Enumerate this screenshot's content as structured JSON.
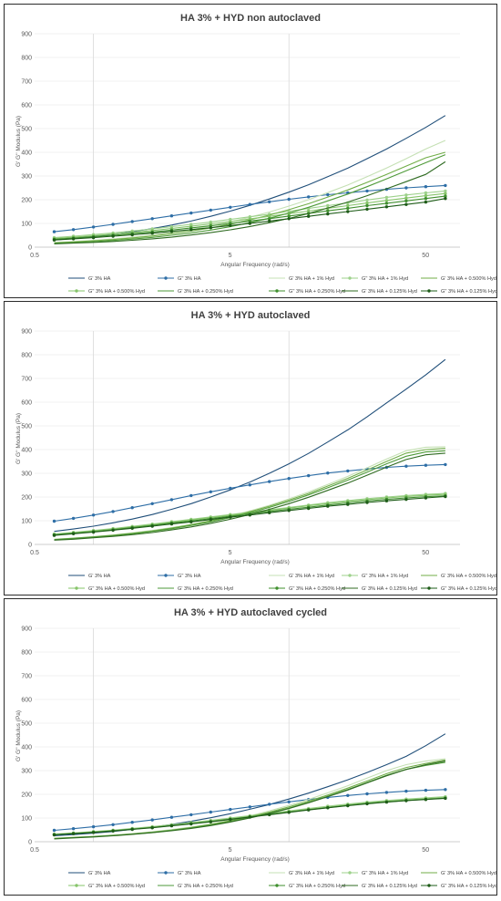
{
  "colors": {
    "g1": "#1f4e79",
    "g2": "#2e6ea6",
    "h1": "#c5e0b4",
    "h2": "#9dd18b",
    "p1": "#70ad47",
    "p2": "#86c46a",
    "q1": "#4e9a38",
    "q2": "#3f8f2e",
    "r1": "#2f6b21",
    "r2": "#1e5c18"
  },
  "chart_data": [
    {
      "type": "line",
      "title": "HA 3% + HYD non autoclaved",
      "xlabel": "Angular Frequency (rad/s)",
      "ylabel": "G' G'' Modulus (Pa)",
      "xscale": "log",
      "xlim": [
        0.5,
        75
      ],
      "ylim": [
        0,
        900
      ],
      "xticks": [
        "0.5",
        "5",
        "50"
      ],
      "yticks": [
        "0",
        "100",
        "200",
        "300",
        "400",
        "500",
        "600",
        "700",
        "800",
        "900"
      ],
      "x": [
        0.63,
        0.79,
        1.0,
        1.26,
        1.58,
        2.0,
        2.51,
        3.16,
        3.98,
        5.01,
        6.31,
        7.94,
        10.0,
        12.6,
        15.8,
        20.0,
        25.1,
        31.6,
        39.8,
        50.1,
        63.1
      ],
      "legend": "bottom",
      "series": [
        {
          "name": "G' 3% HA",
          "values": [
            30,
            37,
            45,
            54,
            65,
            78,
            93,
            110,
            130,
            152,
            176,
            203,
            232,
            263,
            297,
            333,
            373,
            414,
            459,
            505,
            555
          ],
          "markers": false,
          "color": "g1"
        },
        {
          "name": "G'' 3% HA",
          "values": [
            65,
            74,
            85,
            96,
            108,
            120,
            132,
            144,
            156,
            168,
            180,
            191,
            202,
            212,
            221,
            229,
            237,
            244,
            250,
            255,
            260
          ],
          "markers": true,
          "color": "g2"
        },
        {
          "name": "G' 3% HA + 1% Hyd",
          "values": [
            20,
            24,
            29,
            35,
            42,
            51,
            62,
            74,
            89,
            106,
            126,
            148,
            173,
            200,
            230,
            262,
            297,
            334,
            373,
            414,
            450
          ],
          "markers": false,
          "color": "h1"
        },
        {
          "name": "G'' 3% HA + 1% Hyd",
          "values": [
            40,
            46,
            53,
            60,
            68,
            77,
            86,
            96,
            106,
            117,
            128,
            139,
            151,
            163,
            175,
            187,
            199,
            210,
            220,
            229,
            237
          ],
          "markers": true,
          "color": "h2"
        },
        {
          "name": "G' 3% HA + 0.500% Hyd",
          "values": [
            18,
            22,
            27,
            32,
            39,
            47,
            57,
            68,
            81,
            97,
            115,
            135,
            158,
            183,
            211,
            241,
            273,
            307,
            342,
            377,
            400
          ],
          "markers": false,
          "color": "p1"
        },
        {
          "name": "G'' 3% HA + 0.500% Hyd",
          "values": [
            36,
            42,
            48,
            55,
            62,
            70,
            79,
            88,
            98,
            108,
            119,
            130,
            141,
            152,
            164,
            175,
            186,
            197,
            207,
            217,
            226
          ],
          "markers": true,
          "color": "p2"
        },
        {
          "name": "G' 3% HA + 0.250% Hyd",
          "values": [
            16,
            19,
            23,
            28,
            34,
            41,
            50,
            60,
            72,
            86,
            103,
            122,
            144,
            168,
            195,
            224,
            255,
            288,
            322,
            356,
            390
          ],
          "markers": false,
          "color": "q1"
        },
        {
          "name": "G'' 3% HA + 0.250% Hyd",
          "values": [
            33,
            38,
            44,
            50,
            57,
            64,
            72,
            81,
            90,
            100,
            110,
            120,
            131,
            142,
            153,
            164,
            175,
            185,
            195,
            205,
            215
          ],
          "markers": true,
          "color": "q2"
        },
        {
          "name": "G' 3% HA + 0.125% Hyd",
          "values": [
            14,
            17,
            20,
            24,
            29,
            35,
            42,
            51,
            61,
            73,
            87,
            103,
            121,
            142,
            165,
            190,
            217,
            246,
            276,
            307,
            360
          ],
          "markers": false,
          "color": "r1"
        },
        {
          "name": "G'' 3% HA + 0.125% Hyd",
          "values": [
            30,
            35,
            40,
            46,
            52,
            59,
            66,
            74,
            82,
            91,
            100,
            110,
            120,
            130,
            140,
            150,
            160,
            170,
            180,
            190,
            205
          ],
          "markers": true,
          "color": "r2"
        }
      ]
    },
    {
      "type": "line",
      "title": "HA 3% + HYD  autoclaved",
      "xlabel": "Angular Frequency (rad/s)",
      "ylabel": "G' G'' Modulus (Pa)",
      "xscale": "log",
      "xlim": [
        0.5,
        75
      ],
      "ylim": [
        0,
        900
      ],
      "xticks": [
        "0.5",
        "5",
        "50"
      ],
      "yticks": [
        "0",
        "100",
        "200",
        "300",
        "400",
        "500",
        "600",
        "700",
        "800",
        "900"
      ],
      "x": [
        0.63,
        0.79,
        1.0,
        1.26,
        1.58,
        2.0,
        2.51,
        3.16,
        3.98,
        5.01,
        6.31,
        7.94,
        10.0,
        12.6,
        15.8,
        20.0,
        25.1,
        31.6,
        39.8,
        50.1,
        63.1
      ],
      "legend": "bottom",
      "series": [
        {
          "name": "G' 3% HA",
          "values": [
            55,
            65,
            77,
            91,
            107,
            126,
            148,
            172,
            200,
            230,
            263,
            300,
            340,
            384,
            432,
            483,
            538,
            597,
            655,
            715,
            780
          ],
          "markers": false,
          "color": "g1"
        },
        {
          "name": "G'' 3% HA",
          "values": [
            98,
            110,
            124,
            139,
            155,
            172,
            189,
            206,
            222,
            237,
            251,
            265,
            278,
            290,
            301,
            310,
            318,
            325,
            330,
            334,
            337
          ],
          "markers": true,
          "color": "g2"
        },
        {
          "name": "G' 3% HA + 1% Hyd",
          "values": [
            22,
            27,
            33,
            40,
            49,
            59,
            71,
            85,
            101,
            120,
            141,
            165,
            192,
            221,
            253,
            287,
            323,
            360,
            395,
            410,
            412
          ],
          "markers": false,
          "color": "h1"
        },
        {
          "name": "G'' 3% HA + 1% Hyd",
          "values": [
            44,
            51,
            59,
            67,
            76,
            86,
            96,
            106,
            116,
            126,
            136,
            146,
            156,
            166,
            176,
            185,
            193,
            200,
            206,
            211,
            215
          ],
          "markers": true,
          "color": "h2"
        },
        {
          "name": "G' 3% HA + 0.500% Hyd",
          "values": [
            21,
            26,
            32,
            39,
            47,
            57,
            69,
            83,
            99,
            117,
            138,
            161,
            187,
            215,
            246,
            279,
            314,
            350,
            385,
            400,
            405
          ],
          "markers": false,
          "color": "p1"
        },
        {
          "name": "G'' 3% HA + 0.500% Hyd",
          "values": [
            42,
            49,
            57,
            65,
            74,
            83,
            93,
            103,
            113,
            123,
            133,
            143,
            153,
            163,
            172,
            181,
            189,
            196,
            202,
            207,
            211
          ],
          "markers": true,
          "color": "p2"
        },
        {
          "name": "G' 3% HA + 0.250% Hyd",
          "values": [
            20,
            25,
            31,
            37,
            45,
            55,
            66,
            80,
            95,
            113,
            133,
            156,
            181,
            209,
            239,
            271,
            305,
            340,
            372,
            390,
            395
          ],
          "markers": false,
          "color": "q1"
        },
        {
          "name": "G'' 3% HA + 0.250% Hyd",
          "values": [
            40,
            47,
            54,
            62,
            71,
            80,
            90,
            99,
            109,
            119,
            129,
            139,
            148,
            157,
            166,
            175,
            183,
            190,
            196,
            201,
            205
          ],
          "markers": true,
          "color": "q2"
        },
        {
          "name": "G' 3% HA + 0.125% Hyd",
          "values": [
            18,
            22,
            28,
            34,
            41,
            50,
            61,
            74,
            89,
            106,
            126,
            148,
            172,
            199,
            228,
            259,
            292,
            326,
            358,
            378,
            385
          ],
          "markers": false,
          "color": "r1"
        },
        {
          "name": "G'' 3% HA + 0.125% Hyd",
          "values": [
            38,
            45,
            52,
            60,
            68,
            77,
            86,
            95,
            105,
            115,
            124,
            134,
            143,
            152,
            161,
            169,
            177,
            184,
            190,
            196,
            202
          ],
          "markers": true,
          "color": "r2"
        }
      ]
    },
    {
      "type": "line",
      "title": "HA 3% + HYD autoclaved cycled",
      "xlabel": "Angular Frequency (rad/s)",
      "ylabel": "G' G'' Modulus (Pa)",
      "xscale": "log",
      "xlim": [
        0.5,
        75
      ],
      "ylim": [
        0,
        900
      ],
      "xticks": [
        "0.5",
        "5",
        "50"
      ],
      "yticks": [
        "0",
        "100",
        "200",
        "300",
        "400",
        "500",
        "600",
        "700",
        "800",
        "900"
      ],
      "x": [
        0.63,
        0.79,
        1.0,
        1.26,
        1.58,
        2.0,
        2.51,
        3.16,
        3.98,
        5.01,
        6.31,
        7.94,
        10.0,
        12.6,
        15.8,
        20.0,
        25.1,
        31.6,
        39.8,
        50.1,
        63.1
      ],
      "legend": "bottom",
      "series": [
        {
          "name": "G' 3% HA",
          "values": [
            25,
            30,
            36,
            43,
            52,
            62,
            73,
            86,
            101,
            118,
            137,
            157,
            180,
            205,
            232,
            261,
            292,
            325,
            360,
            405,
            455
          ],
          "markers": false,
          "color": "g1"
        },
        {
          "name": "G'' 3% HA",
          "values": [
            48,
            55,
            63,
            72,
            82,
            92,
            103,
            114,
            125,
            136,
            147,
            158,
            168,
            178,
            187,
            195,
            202,
            208,
            213,
            217,
            220
          ],
          "markers": true,
          "color": "g2"
        },
        {
          "name": "G' 3% HA + 1% Hyd",
          "values": [
            15,
            19,
            23,
            28,
            34,
            42,
            51,
            62,
            75,
            91,
            109,
            130,
            153,
            178,
            206,
            236,
            268,
            300,
            325,
            340,
            350
          ],
          "markers": false,
          "color": "h1"
        },
        {
          "name": "G'' 3% HA + 1% Hyd",
          "values": [
            32,
            37,
            43,
            49,
            56,
            64,
            72,
            81,
            90,
            100,
            110,
            120,
            130,
            140,
            150,
            159,
            167,
            174,
            180,
            185,
            190
          ],
          "markers": true,
          "color": "h2"
        },
        {
          "name": "G' 3% HA + 0.500% Hyd",
          "values": [
            14,
            18,
            22,
            27,
            33,
            40,
            49,
            60,
            73,
            88,
            105,
            125,
            147,
            171,
            197,
            226,
            256,
            287,
            313,
            330,
            345
          ],
          "markers": false,
          "color": "p1"
        },
        {
          "name": "G'' 3% HA + 0.500% Hyd",
          "values": [
            31,
            36,
            41,
            47,
            54,
            61,
            69,
            78,
            87,
            97,
            107,
            117,
            127,
            137,
            146,
            155,
            163,
            170,
            176,
            181,
            186
          ],
          "markers": true,
          "color": "p2"
        },
        {
          "name": "G' 3% HA + 0.250% Hyd",
          "values": [
            13,
            17,
            21,
            26,
            32,
            39,
            48,
            58,
            70,
            85,
            102,
            121,
            142,
            166,
            192,
            220,
            250,
            280,
            305,
            322,
            335
          ],
          "markers": false,
          "color": "q1"
        },
        {
          "name": "G'' 3% HA + 0.250% Hyd",
          "values": [
            30,
            35,
            40,
            46,
            53,
            60,
            68,
            76,
            85,
            95,
            105,
            115,
            125,
            135,
            144,
            153,
            161,
            168,
            174,
            179,
            184
          ],
          "markers": true,
          "color": "q2"
        },
        {
          "name": "G' 3% HA + 0.125% Hyd",
          "values": [
            12,
            16,
            20,
            25,
            31,
            38,
            46,
            56,
            68,
            83,
            100,
            119,
            140,
            164,
            190,
            218,
            248,
            278,
            305,
            325,
            340
          ],
          "markers": false,
          "color": "r1"
        },
        {
          "name": "G'' 3% HA + 0.125% Hyd",
          "values": [
            29,
            34,
            39,
            45,
            52,
            59,
            67,
            75,
            84,
            94,
            104,
            114,
            124,
            134,
            143,
            152,
            160,
            167,
            173,
            178,
            183
          ],
          "markers": true,
          "color": "r2"
        }
      ]
    }
  ]
}
